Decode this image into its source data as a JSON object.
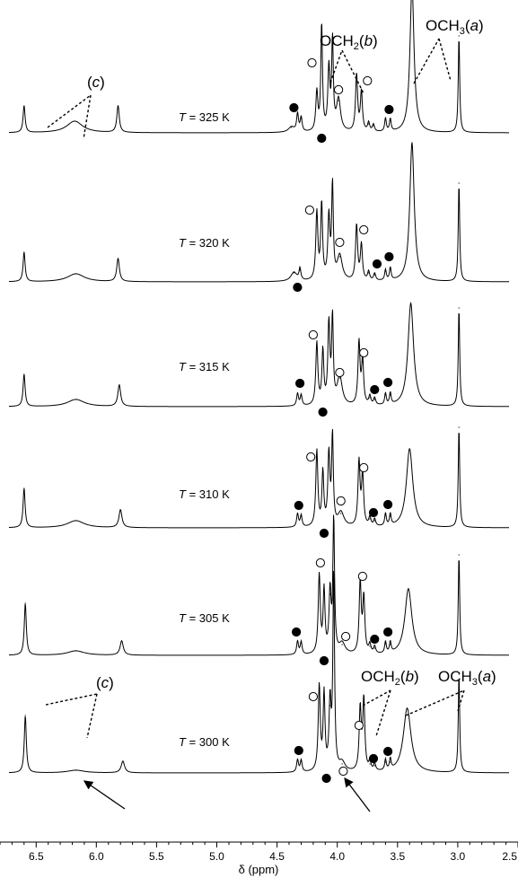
{
  "chart_data": {
    "type": "line",
    "xlabel": "δ (ppm)",
    "x_reversed": true,
    "xlim": [
      6.8,
      2.5
    ],
    "x_ticks": [
      "6.5",
      "6.0",
      "5.5",
      "5.0",
      "4.5",
      "4.0",
      "3.5",
      "3.0",
      "2.5"
    ],
    "x_tick_values": [
      6.5,
      6.0,
      5.5,
      5.0,
      4.5,
      4.0,
      3.5,
      3.0,
      2.5
    ],
    "series": [
      {
        "name": "T = 325 K",
        "t_italic": "T",
        "t_rest": " = 325 K",
        "peaks": [
          {
            "ppm": 6.6,
            "h": 30,
            "w": 0.01
          },
          {
            "ppm": 6.18,
            "h": 13,
            "w": 0.08
          },
          {
            "ppm": 5.82,
            "h": 30,
            "w": 0.012
          },
          {
            "ppm": 4.38,
            "h": 6,
            "w": 0.03
          },
          {
            "ppm": 4.33,
            "h": 20,
            "w": 0.009
          },
          {
            "ppm": 4.3,
            "h": 16,
            "w": 0.009
          },
          {
            "ppm": 4.17,
            "h": 44,
            "w": 0.01
          },
          {
            "ppm": 4.13,
            "h": 120,
            "w": 0.008
          },
          {
            "ppm": 4.07,
            "h": 70,
            "w": 0.01
          },
          {
            "ppm": 4.04,
            "h": 100,
            "w": 0.008
          },
          {
            "ppm": 3.99,
            "h": 36,
            "w": 0.02
          },
          {
            "ppm": 3.84,
            "h": 64,
            "w": 0.01
          },
          {
            "ppm": 3.8,
            "h": 44,
            "w": 0.01
          },
          {
            "ppm": 3.74,
            "h": 10,
            "w": 0.01
          },
          {
            "ppm": 3.7,
            "h": 8,
            "w": 0.01
          },
          {
            "ppm": 3.6,
            "h": 15,
            "w": 0.008
          },
          {
            "ppm": 3.56,
            "h": 14,
            "w": 0.008
          },
          {
            "ppm": 3.38,
            "h": 165,
            "w": 0.02
          },
          {
            "ppm": 2.99,
            "h": 108,
            "w": 0.007
          }
        ],
        "markers": [
          {
            "ppm": 4.36,
            "dy": -28,
            "filled": true
          },
          {
            "ppm": 4.13,
            "dy": 6,
            "filled": true
          },
          {
            "ppm": 3.57,
            "dy": -26,
            "filled": true
          },
          {
            "ppm": 4.21,
            "dy": -78,
            "filled": false
          },
          {
            "ppm": 3.99,
            "dy": -48,
            "filled": false
          },
          {
            "ppm": 3.75,
            "dy": -58,
            "filled": false
          }
        ]
      },
      {
        "name": "T = 320 K",
        "t_italic": "T",
        "t_rest": " = 320 K",
        "peaks": [
          {
            "ppm": 6.6,
            "h": 33,
            "w": 0.01
          },
          {
            "ppm": 6.17,
            "h": 9,
            "w": 0.085
          },
          {
            "ppm": 5.82,
            "h": 26,
            "w": 0.013
          },
          {
            "ppm": 4.36,
            "h": 10,
            "w": 0.03
          },
          {
            "ppm": 4.31,
            "h": 13,
            "w": 0.009
          },
          {
            "ppm": 4.17,
            "h": 76,
            "w": 0.01
          },
          {
            "ppm": 4.13,
            "h": 85,
            "w": 0.009
          },
          {
            "ppm": 4.07,
            "h": 70,
            "w": 0.01
          },
          {
            "ppm": 4.04,
            "h": 105,
            "w": 0.008
          },
          {
            "ppm": 3.98,
            "h": 28,
            "w": 0.025
          },
          {
            "ppm": 3.84,
            "h": 62,
            "w": 0.01
          },
          {
            "ppm": 3.8,
            "h": 40,
            "w": 0.01
          },
          {
            "ppm": 3.74,
            "h": 10,
            "w": 0.01
          },
          {
            "ppm": 3.69,
            "h": 8,
            "w": 0.01
          },
          {
            "ppm": 3.6,
            "h": 12,
            "w": 0.008
          },
          {
            "ppm": 3.56,
            "h": 14,
            "w": 0.008
          },
          {
            "ppm": 3.38,
            "h": 155,
            "w": 0.022
          },
          {
            "ppm": 2.99,
            "h": 110,
            "w": 0.007
          }
        ],
        "markers": [
          {
            "ppm": 4.33,
            "dy": 6,
            "filled": true
          },
          {
            "ppm": 3.67,
            "dy": -20,
            "filled": true
          },
          {
            "ppm": 3.57,
            "dy": -28,
            "filled": true
          },
          {
            "ppm": 4.23,
            "dy": -80,
            "filled": false
          },
          {
            "ppm": 3.98,
            "dy": -44,
            "filled": false
          },
          {
            "ppm": 3.78,
            "dy": -58,
            "filled": false
          }
        ]
      },
      {
        "name": "T = 315 K",
        "t_italic": "T",
        "t_rest": " = 315 K",
        "peaks": [
          {
            "ppm": 6.6,
            "h": 36,
            "w": 0.01
          },
          {
            "ppm": 6.17,
            "h": 8,
            "w": 0.085
          },
          {
            "ppm": 5.81,
            "h": 24,
            "w": 0.014
          },
          {
            "ppm": 4.33,
            "h": 14,
            "w": 0.009
          },
          {
            "ppm": 4.3,
            "h": 12,
            "w": 0.009
          },
          {
            "ppm": 4.17,
            "h": 70,
            "w": 0.01
          },
          {
            "ppm": 4.12,
            "h": 60,
            "w": 0.009
          },
          {
            "ppm": 4.07,
            "h": 90,
            "w": 0.01
          },
          {
            "ppm": 4.04,
            "h": 95,
            "w": 0.008
          },
          {
            "ppm": 3.98,
            "h": 32,
            "w": 0.025
          },
          {
            "ppm": 3.82,
            "h": 70,
            "w": 0.01
          },
          {
            "ppm": 3.79,
            "h": 50,
            "w": 0.01
          },
          {
            "ppm": 3.73,
            "h": 10,
            "w": 0.01
          },
          {
            "ppm": 3.69,
            "h": 8,
            "w": 0.01
          },
          {
            "ppm": 3.6,
            "h": 13,
            "w": 0.008
          },
          {
            "ppm": 3.56,
            "h": 13,
            "w": 0.008
          },
          {
            "ppm": 3.39,
            "h": 115,
            "w": 0.028
          },
          {
            "ppm": 2.99,
            "h": 110,
            "w": 0.007
          }
        ],
        "markers": [
          {
            "ppm": 4.31,
            "dy": -26,
            "filled": true
          },
          {
            "ppm": 4.12,
            "dy": 6,
            "filled": true
          },
          {
            "ppm": 3.69,
            "dy": -19,
            "filled": true
          },
          {
            "ppm": 3.58,
            "dy": -27,
            "filled": true
          },
          {
            "ppm": 4.2,
            "dy": -80,
            "filled": false
          },
          {
            "ppm": 3.98,
            "dy": -38,
            "filled": false
          },
          {
            "ppm": 3.78,
            "dy": -60,
            "filled": false
          }
        ]
      },
      {
        "name": "T = 310 K",
        "t_italic": "T",
        "t_rest": " = 310 K",
        "peaks": [
          {
            "ppm": 6.6,
            "h": 44,
            "w": 0.01
          },
          {
            "ppm": 6.17,
            "h": 8,
            "w": 0.085
          },
          {
            "ppm": 5.8,
            "h": 20,
            "w": 0.015
          },
          {
            "ppm": 4.33,
            "h": 15,
            "w": 0.009
          },
          {
            "ppm": 4.3,
            "h": 13,
            "w": 0.009
          },
          {
            "ppm": 4.17,
            "h": 85,
            "w": 0.01
          },
          {
            "ppm": 4.12,
            "h": 60,
            "w": 0.009
          },
          {
            "ppm": 4.07,
            "h": 80,
            "w": 0.01
          },
          {
            "ppm": 4.04,
            "h": 100,
            "w": 0.008
          },
          {
            "ppm": 3.97,
            "h": 16,
            "w": 0.03
          },
          {
            "ppm": 3.82,
            "h": 72,
            "w": 0.01
          },
          {
            "ppm": 3.79,
            "h": 58,
            "w": 0.01
          },
          {
            "ppm": 3.73,
            "h": 10,
            "w": 0.01
          },
          {
            "ppm": 3.69,
            "h": 8,
            "w": 0.01
          },
          {
            "ppm": 3.6,
            "h": 14,
            "w": 0.008
          },
          {
            "ppm": 3.56,
            "h": 13,
            "w": 0.008
          },
          {
            "ppm": 3.4,
            "h": 88,
            "w": 0.032
          },
          {
            "ppm": 2.99,
            "h": 112,
            "w": 0.007
          }
        ],
        "markers": [
          {
            "ppm": 4.32,
            "dy": -25,
            "filled": true
          },
          {
            "ppm": 4.11,
            "dy": 6,
            "filled": true
          },
          {
            "ppm": 3.7,
            "dy": -17,
            "filled": true
          },
          {
            "ppm": 3.58,
            "dy": -26,
            "filled": true
          },
          {
            "ppm": 4.22,
            "dy": -79,
            "filled": false
          },
          {
            "ppm": 3.97,
            "dy": -30,
            "filled": false
          },
          {
            "ppm": 3.78,
            "dy": -67,
            "filled": false
          }
        ]
      },
      {
        "name": "T = 305 K",
        "t_italic": "T",
        "t_rest": " = 305 K",
        "peaks": [
          {
            "ppm": 6.59,
            "h": 58,
            "w": 0.01
          },
          {
            "ppm": 6.17,
            "h": 5,
            "w": 0.085
          },
          {
            "ppm": 5.79,
            "h": 16,
            "w": 0.016
          },
          {
            "ppm": 4.33,
            "h": 15,
            "w": 0.009
          },
          {
            "ppm": 4.3,
            "h": 14,
            "w": 0.009
          },
          {
            "ppm": 4.15,
            "h": 88,
            "w": 0.01
          },
          {
            "ppm": 4.11,
            "h": 70,
            "w": 0.009
          },
          {
            "ppm": 4.06,
            "h": 68,
            "w": 0.01
          },
          {
            "ppm": 4.03,
            "h": 150,
            "w": 0.008
          },
          {
            "ppm": 3.96,
            "h": 12,
            "w": 0.03
          },
          {
            "ppm": 3.81,
            "h": 80,
            "w": 0.01
          },
          {
            "ppm": 3.78,
            "h": 62,
            "w": 0.01
          },
          {
            "ppm": 3.73,
            "h": 10,
            "w": 0.01
          },
          {
            "ppm": 3.69,
            "h": 8,
            "w": 0.01
          },
          {
            "ppm": 3.6,
            "h": 13,
            "w": 0.008
          },
          {
            "ppm": 3.56,
            "h": 12,
            "w": 0.008
          },
          {
            "ppm": 3.41,
            "h": 74,
            "w": 0.035
          },
          {
            "ppm": 2.99,
            "h": 112,
            "w": 0.007
          }
        ],
        "markers": [
          {
            "ppm": 4.34,
            "dy": -26,
            "filled": true
          },
          {
            "ppm": 4.11,
            "dy": 6,
            "filled": true
          },
          {
            "ppm": 3.69,
            "dy": -18,
            "filled": true
          },
          {
            "ppm": 3.58,
            "dy": -26,
            "filled": true
          },
          {
            "ppm": 4.14,
            "dy": -103,
            "filled": false
          },
          {
            "ppm": 3.93,
            "dy": -21,
            "filled": false
          },
          {
            "ppm": 3.79,
            "dy": -88,
            "filled": false
          }
        ]
      },
      {
        "name": "T = 300 K",
        "t_italic": "T",
        "t_rest": " = 300 K",
        "peaks": [
          {
            "ppm": 6.59,
            "h": 64,
            "w": 0.01
          },
          {
            "ppm": 6.17,
            "h": 3,
            "w": 0.085
          },
          {
            "ppm": 5.78,
            "h": 13,
            "w": 0.017
          },
          {
            "ppm": 4.33,
            "h": 14,
            "w": 0.009
          },
          {
            "ppm": 4.3,
            "h": 13,
            "w": 0.009
          },
          {
            "ppm": 4.15,
            "h": 95,
            "w": 0.01
          },
          {
            "ppm": 4.11,
            "h": 85,
            "w": 0.009
          },
          {
            "ppm": 4.06,
            "h": 75,
            "w": 0.01
          },
          {
            "ppm": 4.03,
            "h": 220,
            "w": 0.008
          },
          {
            "ppm": 3.96,
            "h": 10,
            "w": 0.03
          },
          {
            "ppm": 3.81,
            "h": 70,
            "w": 0.01
          },
          {
            "ppm": 3.78,
            "h": 80,
            "w": 0.01
          },
          {
            "ppm": 3.73,
            "h": 10,
            "w": 0.01
          },
          {
            "ppm": 3.69,
            "h": 8,
            "w": 0.01
          },
          {
            "ppm": 3.6,
            "h": 12,
            "w": 0.008
          },
          {
            "ppm": 3.56,
            "h": 12,
            "w": 0.008
          },
          {
            "ppm": 3.42,
            "h": 72,
            "w": 0.038
          },
          {
            "ppm": 2.99,
            "h": 110,
            "w": 0.007
          }
        ],
        "markers": [
          {
            "ppm": 4.32,
            "dy": -25,
            "filled": true
          },
          {
            "ppm": 4.09,
            "dy": 6,
            "filled": true
          },
          {
            "ppm": 3.7,
            "dy": -16,
            "filled": true
          },
          {
            "ppm": 3.58,
            "dy": -24,
            "filled": true
          },
          {
            "ppm": 4.2,
            "dy": -85,
            "filled": false
          },
          {
            "ppm": 3.95,
            "dy": -2,
            "filled": false
          },
          {
            "ppm": 3.82,
            "dy": -53,
            "filled": false
          }
        ]
      }
    ],
    "annotations": {
      "top": {
        "c_open": "(",
        "c_italic": "c",
        "c_close": ")",
        "och2_base": "OCH",
        "och2_sub": "2",
        "och2_open": "(",
        "och2_italic": "b",
        "och2_close": ")",
        "och3_base": "OCH",
        "och3_sub": "3",
        "och3_open": "(",
        "och3_italic": "a",
        "och3_close": ")"
      },
      "bottom": {
        "c_open": "(",
        "c_italic": "c",
        "c_close": ")",
        "och2_base": "OCH",
        "och2_sub": "2",
        "och2_open": "(",
        "och2_italic": "b",
        "och2_close": ")",
        "och3_base": "OCH",
        "och3_sub": "3",
        "och3_open": "(",
        "och3_italic": "a",
        "och3_close": ")"
      },
      "arrows": [
        {
          "to_ppm": 6.21
        },
        {
          "to_ppm": 3.92
        }
      ]
    }
  }
}
